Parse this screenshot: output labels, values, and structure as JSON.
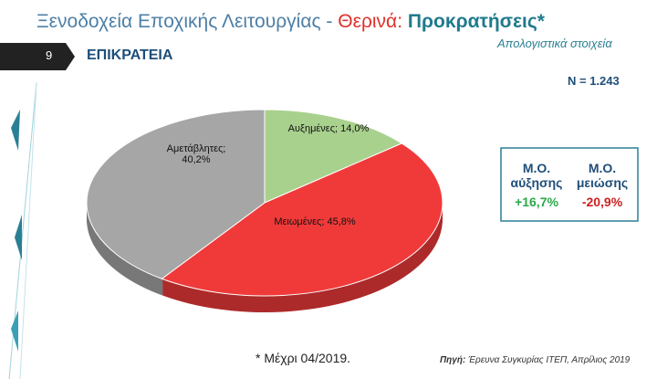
{
  "header": {
    "title_parts": [
      "Ξενοδοχεία Εποχικής Λειτουργίας - ",
      "Θερινά:",
      " Προκρατήσεις*"
    ],
    "subtitle": "Απολογιστικά στοιχεία",
    "slide_number": "9",
    "section": "ΕΠΙΚΡΑΤΕΙΑ"
  },
  "n_label": "N = 1.243",
  "chart_data": {
    "type": "pie",
    "values": [
      14.0,
      45.8,
      40.2
    ],
    "value_labels": [
      "Αυξημένες; 14,0%",
      "Μειωμένες; 45,8%",
      "Αμετάβλητες; 40,2%"
    ],
    "colors": [
      "#a9d18e",
      "#f03a3a",
      "#a6a6a6"
    ]
  },
  "summary": {
    "increase_label": "Μ.Ο. αύξησης",
    "increase_value": "+16,7%",
    "decrease_label": "Μ.Ο. μειώσης",
    "decrease_value": "-20,9%"
  },
  "footer": {
    "note": "* Μέχρι 04/2019.",
    "source_label": "Πηγή:",
    "source": " Έρευνα Συγκυρίας ΙΤΕΠ, Απρίλιος 2019"
  }
}
